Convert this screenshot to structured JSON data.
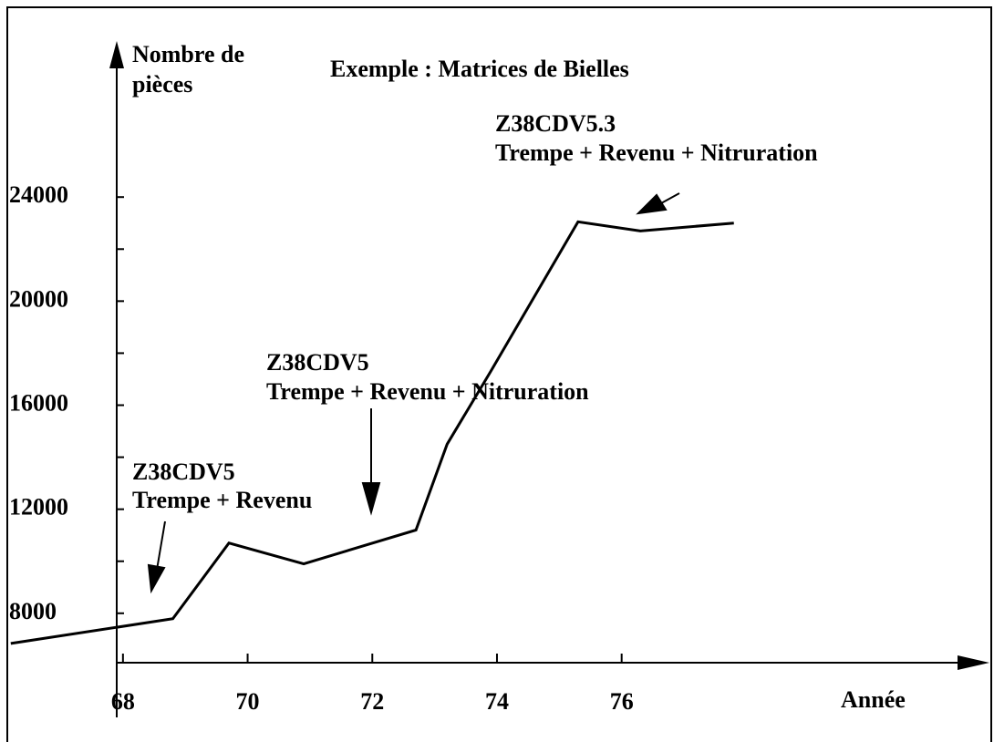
{
  "chart_data": {
    "type": "line",
    "title": "Exemple : Matrices de Bielles",
    "y_label": [
      "Nombre de",
      "pièces"
    ],
    "x_label": "Année",
    "x": [
      66.2,
      68.8,
      69.7,
      70.9,
      72.7,
      73.2,
      73.9,
      75.3,
      76.3,
      77.8
    ],
    "series": [
      {
        "color": "#000000",
        "values": [
          6840,
          7790,
          10700,
          9900,
          11200,
          14500,
          17300,
          23050,
          22700,
          23000
        ]
      }
    ],
    "xlim": [
      67.9,
      81.9
    ],
    "ylim": [
      6100,
      30000
    ],
    "xticks": [
      68,
      70,
      72,
      74,
      76
    ],
    "yticks": [
      8000,
      12000,
      16000,
      20000,
      24000
    ],
    "yticks_minor": [
      10000,
      14000,
      18000,
      22000
    ],
    "annotations": [
      {
        "lines": [
          "Z38CDV5",
          "Trempe + Revenu"
        ]
      },
      {
        "lines": [
          "Z38CDV5",
          "Trempe + Revenu + Nitruration"
        ]
      },
      {
        "lines": [
          "Z38CDV5.3",
          "Trempe + Revenu + Nitruration"
        ]
      }
    ]
  }
}
